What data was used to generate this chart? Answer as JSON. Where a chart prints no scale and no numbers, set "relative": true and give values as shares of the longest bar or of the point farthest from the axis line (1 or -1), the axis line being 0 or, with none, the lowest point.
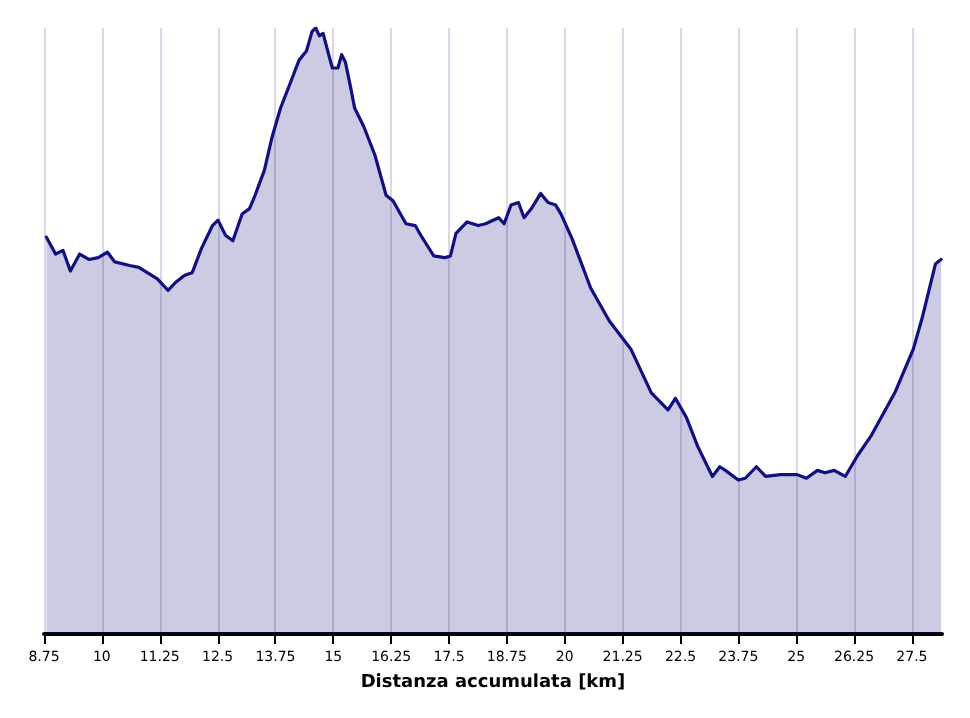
{
  "chart_data": {
    "type": "area",
    "xlabel": "Distanza accumulata [km]",
    "relative": true,
    "grid": "x",
    "marker": "none",
    "line_style": "solid",
    "color": "#101080",
    "xlim": [
      8.75,
      28.15
    ],
    "xticks": [
      8.75,
      10,
      11.25,
      12.5,
      13.75,
      15,
      16.25,
      17.5,
      18.75,
      20,
      21.25,
      22.5,
      23.75,
      25,
      26.25,
      27.5
    ],
    "x": [
      8.8,
      9.0,
      9.16,
      9.32,
      9.52,
      9.72,
      9.92,
      10.12,
      10.28,
      10.6,
      10.8,
      10.99,
      11.2,
      11.43,
      11.59,
      11.79,
      11.95,
      12.15,
      12.39,
      12.51,
      12.67,
      12.83,
      13.03,
      13.19,
      13.31,
      13.51,
      13.67,
      13.86,
      14.1,
      14.26,
      14.42,
      14.54,
      14.62,
      14.7,
      14.78,
      14.9,
      14.98,
      15.1,
      15.18,
      15.26,
      15.38,
      15.46,
      15.66,
      15.9,
      16.14,
      16.29,
      16.57,
      16.77,
      16.89,
      17.17,
      17.41,
      17.53,
      17.65,
      17.89,
      18.13,
      18.29,
      18.57,
      18.69,
      18.84,
      19.0,
      19.12,
      19.28,
      19.48,
      19.64,
      19.8,
      19.92,
      20.16,
      20.56,
      20.96,
      21.43,
      21.87,
      22.23,
      22.39,
      22.63,
      22.87,
      23.19,
      23.35,
      23.47,
      23.75,
      23.9,
      24.14,
      24.34,
      24.66,
      25.02,
      25.22,
      25.46,
      25.62,
      25.82,
      26.06,
      26.33,
      26.61,
      27.13,
      27.53,
      27.73,
      28.01,
      28.13
    ],
    "values": [
      0.655,
      0.627,
      0.633,
      0.599,
      0.627,
      0.618,
      0.621,
      0.63,
      0.614,
      0.608,
      0.605,
      0.596,
      0.586,
      0.567,
      0.58,
      0.592,
      0.596,
      0.636,
      0.674,
      0.683,
      0.658,
      0.649,
      0.693,
      0.702,
      0.724,
      0.765,
      0.818,
      0.868,
      0.915,
      0.947,
      0.962,
      0.994,
      1,
      0.987,
      0.991,
      0.956,
      0.934,
      0.934,
      0.956,
      0.944,
      0.9,
      0.868,
      0.837,
      0.79,
      0.724,
      0.715,
      0.677,
      0.674,
      0.658,
      0.624,
      0.621,
      0.624,
      0.661,
      0.68,
      0.674,
      0.677,
      0.687,
      0.677,
      0.708,
      0.712,
      0.687,
      0.702,
      0.727,
      0.712,
      0.708,
      0.693,
      0.652,
      0.571,
      0.517,
      0.47,
      0.398,
      0.37,
      0.389,
      0.357,
      0.31,
      0.26,
      0.276,
      0.27,
      0.254,
      0.257,
      0.276,
      0.26,
      0.263,
      0.263,
      0.257,
      0.27,
      0.266,
      0.27,
      0.26,
      0.295,
      0.326,
      0.398,
      0.47,
      0.524,
      0.611,
      0.618
    ]
  }
}
